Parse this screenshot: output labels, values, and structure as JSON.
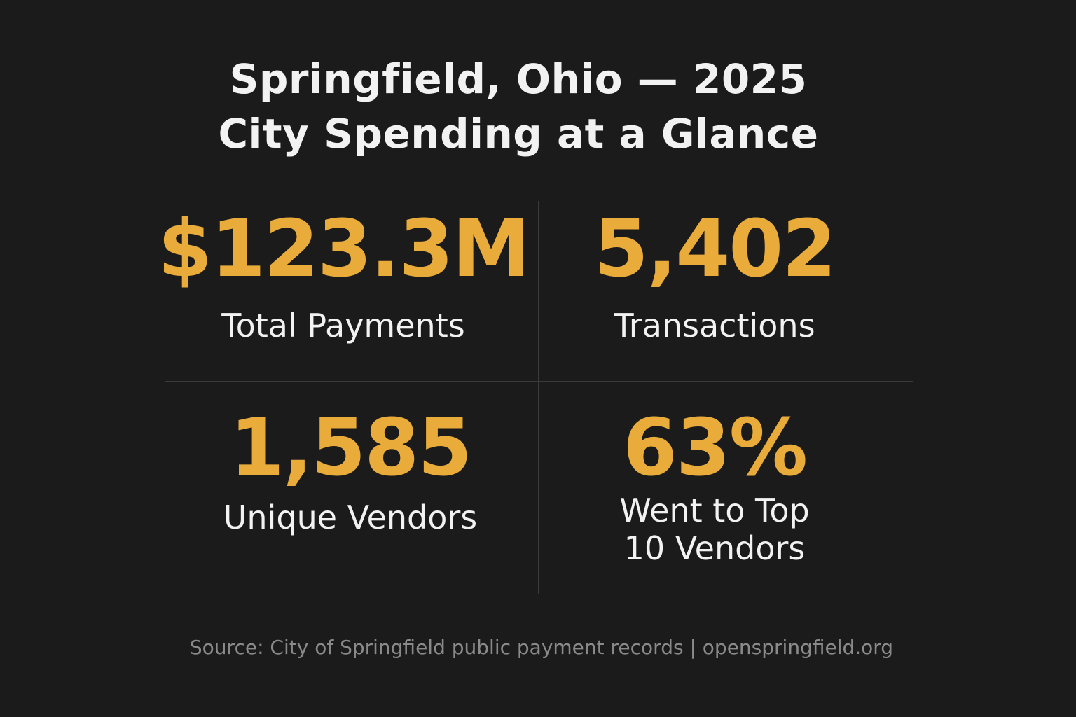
{
  "title": {
    "line1": "Springfield, Ohio — 2025",
    "line2": "City Spending at a Glance"
  },
  "stats": [
    {
      "value": "$123.3M",
      "label_line1": "Total Payments",
      "label_line2": ""
    },
    {
      "value": "5,402",
      "label_line1": "Transactions",
      "label_line2": ""
    },
    {
      "value": "1,585",
      "label_line1": "Unique Vendors",
      "label_line2": ""
    },
    {
      "value": "63%",
      "label_line1": "Went to Top",
      "label_line2": "10 Vendors"
    }
  ],
  "source": "Source: City of Springfield public payment records | openspringfield.org",
  "colors": {
    "background": "#1b1b1b",
    "accent": "#e9ac3a",
    "text": "#f2f2f2",
    "muted": "#8a8a8a",
    "divider": "#3a3a3a"
  }
}
